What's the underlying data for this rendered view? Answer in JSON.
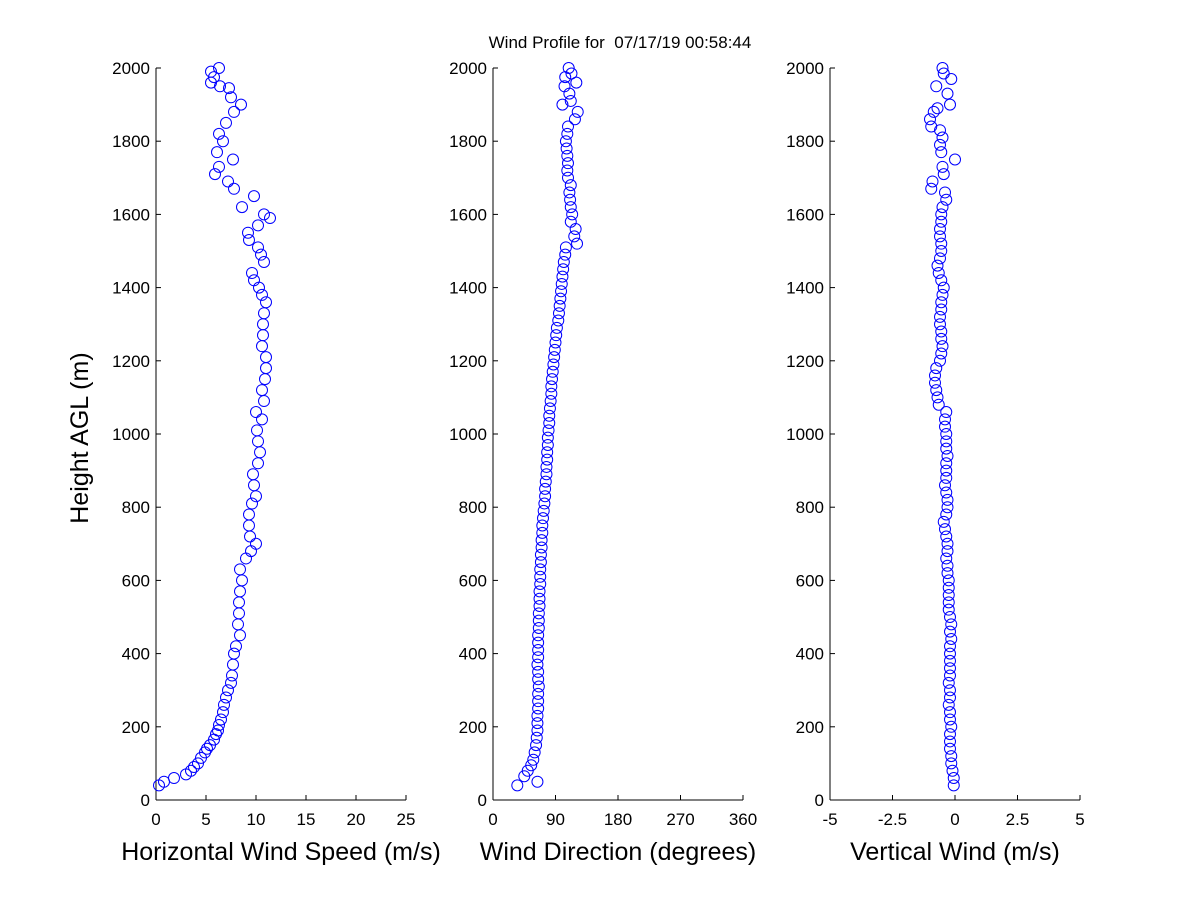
{
  "figure": {
    "title": "Wind Profile for  07/17/19 00:58:44",
    "colors": {
      "marker": "#0000ff",
      "axis": "#000000",
      "background": "#ffffff"
    }
  },
  "chart_data": [
    {
      "type": "scatter",
      "xlabel": "Horizontal Wind Speed (m/s)",
      "ylabel": "Height AGL (m)",
      "xlim": [
        0,
        25
      ],
      "ylim": [
        0,
        2000
      ],
      "xticks": [
        "0",
        "5",
        "10",
        "15",
        "20",
        "25"
      ],
      "yticks": [
        "0",
        "200",
        "400",
        "600",
        "800",
        "1000",
        "1200",
        "1400",
        "1600",
        "1800",
        "2000"
      ],
      "grid": false,
      "marker": "open circle",
      "points": [
        {
          "x": 0.3,
          "y": 40
        },
        {
          "x": 0.8,
          "y": 50
        },
        {
          "x": 1.8,
          "y": 60
        },
        {
          "x": 3.0,
          "y": 70
        },
        {
          "x": 3.5,
          "y": 80
        },
        {
          "x": 3.8,
          "y": 90
        },
        {
          "x": 4.2,
          "y": 100
        },
        {
          "x": 4.5,
          "y": 115
        },
        {
          "x": 4.9,
          "y": 130
        },
        {
          "x": 5.1,
          "y": 140
        },
        {
          "x": 5.4,
          "y": 150
        },
        {
          "x": 5.8,
          "y": 165
        },
        {
          "x": 6.0,
          "y": 180
        },
        {
          "x": 6.2,
          "y": 190
        },
        {
          "x": 6.3,
          "y": 205
        },
        {
          "x": 6.5,
          "y": 220
        },
        {
          "x": 6.7,
          "y": 240
        },
        {
          "x": 6.8,
          "y": 260
        },
        {
          "x": 7.0,
          "y": 280
        },
        {
          "x": 7.2,
          "y": 300
        },
        {
          "x": 7.5,
          "y": 320
        },
        {
          "x": 7.6,
          "y": 340
        },
        {
          "x": 7.7,
          "y": 370
        },
        {
          "x": 7.8,
          "y": 400
        },
        {
          "x": 8.0,
          "y": 420
        },
        {
          "x": 8.4,
          "y": 450
        },
        {
          "x": 8.2,
          "y": 480
        },
        {
          "x": 8.3,
          "y": 510
        },
        {
          "x": 8.3,
          "y": 540
        },
        {
          "x": 8.4,
          "y": 570
        },
        {
          "x": 8.6,
          "y": 600
        },
        {
          "x": 8.4,
          "y": 630
        },
        {
          "x": 9.0,
          "y": 660
        },
        {
          "x": 9.5,
          "y": 680
        },
        {
          "x": 10.0,
          "y": 700
        },
        {
          "x": 9.4,
          "y": 720
        },
        {
          "x": 9.3,
          "y": 750
        },
        {
          "x": 9.3,
          "y": 780
        },
        {
          "x": 9.6,
          "y": 810
        },
        {
          "x": 10.0,
          "y": 830
        },
        {
          "x": 9.8,
          "y": 860
        },
        {
          "x": 9.7,
          "y": 890
        },
        {
          "x": 10.2,
          "y": 920
        },
        {
          "x": 10.4,
          "y": 950
        },
        {
          "x": 10.2,
          "y": 980
        },
        {
          "x": 10.1,
          "y": 1010
        },
        {
          "x": 10.6,
          "y": 1040
        },
        {
          "x": 10.0,
          "y": 1060
        },
        {
          "x": 10.8,
          "y": 1090
        },
        {
          "x": 10.6,
          "y": 1120
        },
        {
          "x": 10.9,
          "y": 1150
        },
        {
          "x": 11.0,
          "y": 1180
        },
        {
          "x": 11.0,
          "y": 1210
        },
        {
          "x": 10.6,
          "y": 1240
        },
        {
          "x": 10.7,
          "y": 1270
        },
        {
          "x": 10.7,
          "y": 1300
        },
        {
          "x": 10.8,
          "y": 1330
        },
        {
          "x": 11.0,
          "y": 1360
        },
        {
          "x": 10.6,
          "y": 1380
        },
        {
          "x": 10.3,
          "y": 1400
        },
        {
          "x": 9.8,
          "y": 1420
        },
        {
          "x": 9.6,
          "y": 1440
        },
        {
          "x": 10.8,
          "y": 1470
        },
        {
          "x": 10.5,
          "y": 1490
        },
        {
          "x": 10.2,
          "y": 1510
        },
        {
          "x": 9.3,
          "y": 1530
        },
        {
          "x": 9.2,
          "y": 1550
        },
        {
          "x": 10.2,
          "y": 1570
        },
        {
          "x": 11.4,
          "y": 1590
        },
        {
          "x": 10.8,
          "y": 1600
        },
        {
          "x": 8.6,
          "y": 1620
        },
        {
          "x": 9.8,
          "y": 1650
        },
        {
          "x": 7.8,
          "y": 1670
        },
        {
          "x": 7.2,
          "y": 1690
        },
        {
          "x": 5.9,
          "y": 1710
        },
        {
          "x": 6.3,
          "y": 1730
        },
        {
          "x": 7.7,
          "y": 1750
        },
        {
          "x": 6.1,
          "y": 1770
        },
        {
          "x": 6.7,
          "y": 1800
        },
        {
          "x": 6.3,
          "y": 1820
        },
        {
          "x": 7.0,
          "y": 1850
        },
        {
          "x": 7.8,
          "y": 1880
        },
        {
          "x": 8.5,
          "y": 1900
        },
        {
          "x": 7.5,
          "y": 1920
        },
        {
          "x": 7.3,
          "y": 1945
        },
        {
          "x": 6.4,
          "y": 1950
        },
        {
          "x": 5.5,
          "y": 1960
        },
        {
          "x": 5.8,
          "y": 1975
        },
        {
          "x": 5.5,
          "y": 1990
        },
        {
          "x": 6.3,
          "y": 2000
        }
      ]
    },
    {
      "type": "scatter",
      "xlabel": "Wind Direction (degrees)",
      "ylabel": "",
      "xlim": [
        0,
        360
      ],
      "ylim": [
        0,
        2000
      ],
      "xticks": [
        "0",
        "90",
        "180",
        "270",
        "360"
      ],
      "yticks": [
        "0",
        "200",
        "400",
        "600",
        "800",
        "1000",
        "1200",
        "1400",
        "1600",
        "1800",
        "2000"
      ],
      "grid": false,
      "marker": "open circle",
      "points": [
        {
          "x": 35,
          "y": 40
        },
        {
          "x": 64,
          "y": 50
        },
        {
          "x": 45,
          "y": 65
        },
        {
          "x": 50,
          "y": 80
        },
        {
          "x": 55,
          "y": 95
        },
        {
          "x": 58,
          "y": 110
        },
        {
          "x": 60,
          "y": 130
        },
        {
          "x": 62,
          "y": 150
        },
        {
          "x": 63,
          "y": 170
        },
        {
          "x": 64,
          "y": 190
        },
        {
          "x": 64,
          "y": 210
        },
        {
          "x": 64,
          "y": 230
        },
        {
          "x": 65,
          "y": 250
        },
        {
          "x": 65,
          "y": 270
        },
        {
          "x": 65,
          "y": 290
        },
        {
          "x": 66,
          "y": 310
        },
        {
          "x": 65,
          "y": 330
        },
        {
          "x": 65,
          "y": 350
        },
        {
          "x": 64,
          "y": 370
        },
        {
          "x": 65,
          "y": 390
        },
        {
          "x": 65,
          "y": 410
        },
        {
          "x": 65,
          "y": 430
        },
        {
          "x": 65,
          "y": 450
        },
        {
          "x": 66,
          "y": 470
        },
        {
          "x": 66,
          "y": 490
        },
        {
          "x": 66,
          "y": 510
        },
        {
          "x": 67,
          "y": 530
        },
        {
          "x": 67,
          "y": 550
        },
        {
          "x": 67,
          "y": 570
        },
        {
          "x": 68,
          "y": 590
        },
        {
          "x": 68,
          "y": 610
        },
        {
          "x": 68,
          "y": 630
        },
        {
          "x": 69,
          "y": 650
        },
        {
          "x": 69,
          "y": 670
        },
        {
          "x": 70,
          "y": 690
        },
        {
          "x": 70,
          "y": 710
        },
        {
          "x": 71,
          "y": 730
        },
        {
          "x": 71,
          "y": 750
        },
        {
          "x": 72,
          "y": 770
        },
        {
          "x": 73,
          "y": 790
        },
        {
          "x": 74,
          "y": 810
        },
        {
          "x": 75,
          "y": 830
        },
        {
          "x": 75,
          "y": 850
        },
        {
          "x": 76,
          "y": 870
        },
        {
          "x": 77,
          "y": 890
        },
        {
          "x": 77,
          "y": 910
        },
        {
          "x": 78,
          "y": 930
        },
        {
          "x": 78,
          "y": 950
        },
        {
          "x": 79,
          "y": 970
        },
        {
          "x": 79,
          "y": 990
        },
        {
          "x": 80,
          "y": 1010
        },
        {
          "x": 81,
          "y": 1030
        },
        {
          "x": 81,
          "y": 1050
        },
        {
          "x": 82,
          "y": 1070
        },
        {
          "x": 83,
          "y": 1090
        },
        {
          "x": 84,
          "y": 1110
        },
        {
          "x": 84,
          "y": 1130
        },
        {
          "x": 85,
          "y": 1150
        },
        {
          "x": 86,
          "y": 1170
        },
        {
          "x": 87,
          "y": 1190
        },
        {
          "x": 88,
          "y": 1210
        },
        {
          "x": 89,
          "y": 1230
        },
        {
          "x": 90,
          "y": 1250
        },
        {
          "x": 91,
          "y": 1270
        },
        {
          "x": 92,
          "y": 1290
        },
        {
          "x": 94,
          "y": 1310
        },
        {
          "x": 95,
          "y": 1330
        },
        {
          "x": 96,
          "y": 1350
        },
        {
          "x": 97,
          "y": 1370
        },
        {
          "x": 98,
          "y": 1390
        },
        {
          "x": 99,
          "y": 1410
        },
        {
          "x": 100,
          "y": 1430
        },
        {
          "x": 101,
          "y": 1450
        },
        {
          "x": 102,
          "y": 1470
        },
        {
          "x": 104,
          "y": 1490
        },
        {
          "x": 105,
          "y": 1510
        },
        {
          "x": 121,
          "y": 1520
        },
        {
          "x": 117,
          "y": 1540
        },
        {
          "x": 119,
          "y": 1560
        },
        {
          "x": 112,
          "y": 1580
        },
        {
          "x": 114,
          "y": 1600
        },
        {
          "x": 112,
          "y": 1620
        },
        {
          "x": 111,
          "y": 1640
        },
        {
          "x": 110,
          "y": 1660
        },
        {
          "x": 112,
          "y": 1680
        },
        {
          "x": 108,
          "y": 1700
        },
        {
          "x": 107,
          "y": 1720
        },
        {
          "x": 108,
          "y": 1740
        },
        {
          "x": 107,
          "y": 1760
        },
        {
          "x": 106,
          "y": 1780
        },
        {
          "x": 105,
          "y": 1800
        },
        {
          "x": 107,
          "y": 1820
        },
        {
          "x": 108,
          "y": 1840
        },
        {
          "x": 118,
          "y": 1860
        },
        {
          "x": 122,
          "y": 1880
        },
        {
          "x": 100,
          "y": 1900
        },
        {
          "x": 112,
          "y": 1910
        },
        {
          "x": 110,
          "y": 1930
        },
        {
          "x": 103,
          "y": 1950
        },
        {
          "x": 120,
          "y": 1960
        },
        {
          "x": 104,
          "y": 1975
        },
        {
          "x": 113,
          "y": 1985
        },
        {
          "x": 109,
          "y": 2000
        }
      ]
    },
    {
      "type": "scatter",
      "xlabel": "Vertical Wind (m/s)",
      "ylabel": "",
      "xlim": [
        -5,
        5
      ],
      "ylim": [
        0,
        2000
      ],
      "xticks": [
        "-5",
        "-2.5",
        "0",
        "2.5",
        "5"
      ],
      "yticks": [
        "0",
        "200",
        "400",
        "600",
        "800",
        "1000",
        "1200",
        "1400",
        "1600",
        "1800",
        "2000"
      ],
      "grid": false,
      "marker": "open circle",
      "points": [
        {
          "x": -0.05,
          "y": 40
        },
        {
          "x": -0.05,
          "y": 60
        },
        {
          "x": -0.1,
          "y": 80
        },
        {
          "x": -0.15,
          "y": 100
        },
        {
          "x": -0.15,
          "y": 120
        },
        {
          "x": -0.2,
          "y": 140
        },
        {
          "x": -0.2,
          "y": 160
        },
        {
          "x": -0.2,
          "y": 180
        },
        {
          "x": -0.15,
          "y": 200
        },
        {
          "x": -0.2,
          "y": 220
        },
        {
          "x": -0.2,
          "y": 240
        },
        {
          "x": -0.25,
          "y": 260
        },
        {
          "x": -0.2,
          "y": 280
        },
        {
          "x": -0.2,
          "y": 300
        },
        {
          "x": -0.25,
          "y": 320
        },
        {
          "x": -0.2,
          "y": 340
        },
        {
          "x": -0.2,
          "y": 360
        },
        {
          "x": -0.2,
          "y": 380
        },
        {
          "x": -0.2,
          "y": 400
        },
        {
          "x": -0.2,
          "y": 420
        },
        {
          "x": -0.15,
          "y": 440
        },
        {
          "x": -0.2,
          "y": 460
        },
        {
          "x": -0.15,
          "y": 480
        },
        {
          "x": -0.2,
          "y": 500
        },
        {
          "x": -0.25,
          "y": 520
        },
        {
          "x": -0.25,
          "y": 540
        },
        {
          "x": -0.25,
          "y": 560
        },
        {
          "x": -0.25,
          "y": 580
        },
        {
          "x": -0.25,
          "y": 600
        },
        {
          "x": -0.3,
          "y": 620
        },
        {
          "x": -0.3,
          "y": 640
        },
        {
          "x": -0.35,
          "y": 660
        },
        {
          "x": -0.3,
          "y": 680
        },
        {
          "x": -0.3,
          "y": 700
        },
        {
          "x": -0.35,
          "y": 720
        },
        {
          "x": -0.4,
          "y": 740
        },
        {
          "x": -0.45,
          "y": 760
        },
        {
          "x": -0.35,
          "y": 780
        },
        {
          "x": -0.3,
          "y": 800
        },
        {
          "x": -0.3,
          "y": 820
        },
        {
          "x": -0.35,
          "y": 840
        },
        {
          "x": -0.4,
          "y": 860
        },
        {
          "x": -0.35,
          "y": 880
        },
        {
          "x": -0.35,
          "y": 900
        },
        {
          "x": -0.35,
          "y": 920
        },
        {
          "x": -0.3,
          "y": 940
        },
        {
          "x": -0.35,
          "y": 960
        },
        {
          "x": -0.35,
          "y": 980
        },
        {
          "x": -0.35,
          "y": 1000
        },
        {
          "x": -0.4,
          "y": 1020
        },
        {
          "x": -0.4,
          "y": 1040
        },
        {
          "x": -0.35,
          "y": 1060
        },
        {
          "x": -0.65,
          "y": 1080
        },
        {
          "x": -0.7,
          "y": 1100
        },
        {
          "x": -0.75,
          "y": 1120
        },
        {
          "x": -0.8,
          "y": 1140
        },
        {
          "x": -0.8,
          "y": 1160
        },
        {
          "x": -0.75,
          "y": 1180
        },
        {
          "x": -0.6,
          "y": 1200
        },
        {
          "x": -0.55,
          "y": 1220
        },
        {
          "x": -0.5,
          "y": 1240
        },
        {
          "x": -0.55,
          "y": 1260
        },
        {
          "x": -0.55,
          "y": 1280
        },
        {
          "x": -0.6,
          "y": 1300
        },
        {
          "x": -0.6,
          "y": 1320
        },
        {
          "x": -0.55,
          "y": 1340
        },
        {
          "x": -0.55,
          "y": 1360
        },
        {
          "x": -0.5,
          "y": 1380
        },
        {
          "x": -0.45,
          "y": 1400
        },
        {
          "x": -0.55,
          "y": 1420
        },
        {
          "x": -0.65,
          "y": 1440
        },
        {
          "x": -0.7,
          "y": 1460
        },
        {
          "x": -0.6,
          "y": 1480
        },
        {
          "x": -0.55,
          "y": 1500
        },
        {
          "x": -0.55,
          "y": 1520
        },
        {
          "x": -0.6,
          "y": 1540
        },
        {
          "x": -0.6,
          "y": 1560
        },
        {
          "x": -0.55,
          "y": 1580
        },
        {
          "x": -0.55,
          "y": 1600
        },
        {
          "x": -0.35,
          "y": 1640
        },
        {
          "x": -0.5,
          "y": 1620
        },
        {
          "x": -0.4,
          "y": 1660
        },
        {
          "x": -0.95,
          "y": 1670
        },
        {
          "x": -0.9,
          "y": 1690
        },
        {
          "x": -0.45,
          "y": 1710
        },
        {
          "x": -0.5,
          "y": 1730
        },
        {
          "x": 0.0,
          "y": 1750
        },
        {
          "x": -0.55,
          "y": 1770
        },
        {
          "x": -0.6,
          "y": 1790
        },
        {
          "x": -0.5,
          "y": 1810
        },
        {
          "x": -0.6,
          "y": 1830
        },
        {
          "x": -0.95,
          "y": 1840
        },
        {
          "x": -1.0,
          "y": 1860
        },
        {
          "x": -0.85,
          "y": 1880
        },
        {
          "x": -0.7,
          "y": 1890
        },
        {
          "x": -0.2,
          "y": 1900
        },
        {
          "x": -0.3,
          "y": 1930
        },
        {
          "x": -0.75,
          "y": 1950
        },
        {
          "x": -0.15,
          "y": 1970
        },
        {
          "x": -0.45,
          "y": 1985
        },
        {
          "x": -0.5,
          "y": 2000
        }
      ]
    }
  ]
}
